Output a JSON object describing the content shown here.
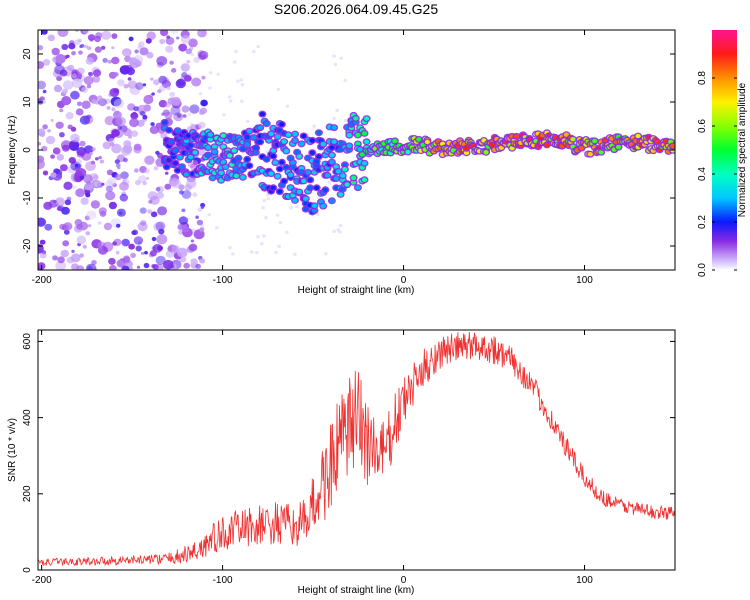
{
  "figure_title": "S206.2026.064.09.45.G25",
  "chart_data": [
    {
      "type": "heatmap",
      "title": "",
      "xlabel": "Height of straight line (km)",
      "ylabel": "Frequency (Hz)",
      "xlim": [
        -202,
        150
      ],
      "ylim": [
        -25,
        25
      ],
      "xticks": [
        -200,
        -100,
        0,
        100
      ],
      "xtick_labels": [
        "-200",
        "-100",
        "0",
        "100"
      ],
      "yticks": [
        -20,
        -10,
        0,
        10,
        20
      ],
      "ytick_labels": [
        "-20",
        "-10",
        "0",
        "10",
        "20"
      ],
      "colorbar": {
        "label": "Normalized spectral amplitude",
        "range": [
          0,
          1
        ],
        "ticks": [
          0,
          0.2,
          0.4,
          0.6,
          0.8
        ],
        "tick_labels": [
          "0.0",
          "0.2",
          "0.4",
          "0.6",
          "0.8"
        ],
        "colormap": "rainbow (white-violet-blue-cyan-green-yellow-orange-red-magenta)"
      },
      "ridge": {
        "description": "dominant frequency track vs height",
        "x": [
          -130,
          -120,
          -110,
          -100,
          -90,
          -80,
          -70,
          -60,
          -50,
          -40,
          -30,
          -20,
          -10,
          0,
          10,
          20,
          40,
          60,
          75,
          85,
          95,
          105,
          115,
          130,
          150
        ],
        "y": [
          1,
          -1,
          0,
          -2,
          -1,
          0,
          -2,
          -4,
          -5,
          -3,
          -1,
          0,
          0.5,
          1,
          1,
          0.5,
          0.8,
          1.5,
          2,
          2.5,
          1,
          0.5,
          1.5,
          1.5,
          1
        ],
        "amplitude": [
          0.25,
          0.3,
          0.35,
          0.4,
          0.35,
          0.3,
          0.3,
          0.35,
          0.3,
          0.3,
          0.4,
          0.5,
          0.55,
          0.6,
          0.7,
          0.8,
          0.85,
          0.9,
          0.9,
          0.92,
          0.8,
          0.85,
          0.8,
          0.85,
          0.8
        ]
      },
      "noise_region_x": [
        -202,
        -120
      ]
    },
    {
      "type": "line",
      "title": "",
      "xlabel": "Height of straight line (km)",
      "ylabel": "SNR (10 * v/v)",
      "xlim": [
        -202,
        150
      ],
      "ylim": [
        0,
        630
      ],
      "xticks": [
        -200,
        -100,
        0,
        100
      ],
      "xtick_labels": [
        "-200",
        "-100",
        "0",
        "100"
      ],
      "yticks": [
        0,
        200,
        400,
        600
      ],
      "ytick_labels": [
        "0",
        "200",
        "400",
        "600"
      ],
      "series": [
        {
          "name": "SNR",
          "color": "#ef3030",
          "x": [
            -200,
            -180,
            -160,
            -140,
            -130,
            -120,
            -115,
            -110,
            -105,
            -100,
            -90,
            -80,
            -70,
            -60,
            -55,
            -50,
            -45,
            -40,
            -35,
            -30,
            -25,
            -20,
            -15,
            -10,
            -5,
            0,
            5,
            10,
            15,
            20,
            25,
            30,
            40,
            50,
            60,
            70,
            80,
            90,
            100,
            110,
            120,
            130,
            140,
            150
          ],
          "y": [
            20,
            22,
            25,
            28,
            30,
            40,
            50,
            65,
            80,
            95,
            110,
            115,
            120,
            115,
            125,
            170,
            220,
            280,
            330,
            370,
            390,
            350,
            300,
            310,
            380,
            440,
            480,
            520,
            550,
            570,
            580,
            585,
            590,
            580,
            550,
            490,
            410,
            320,
            240,
            190,
            170,
            160,
            150,
            150
          ],
          "noise_amplitude": [
            10,
            10,
            12,
            12,
            15,
            25,
            30,
            40,
            45,
            45,
            50,
            55,
            60,
            55,
            60,
            80,
            110,
            120,
            130,
            140,
            150,
            140,
            100,
            90,
            80,
            70,
            60,
            55,
            50,
            45,
            40,
            40,
            40,
            40,
            35,
            35,
            30,
            30,
            25,
            20,
            20,
            18,
            18,
            18
          ]
        }
      ]
    }
  ]
}
